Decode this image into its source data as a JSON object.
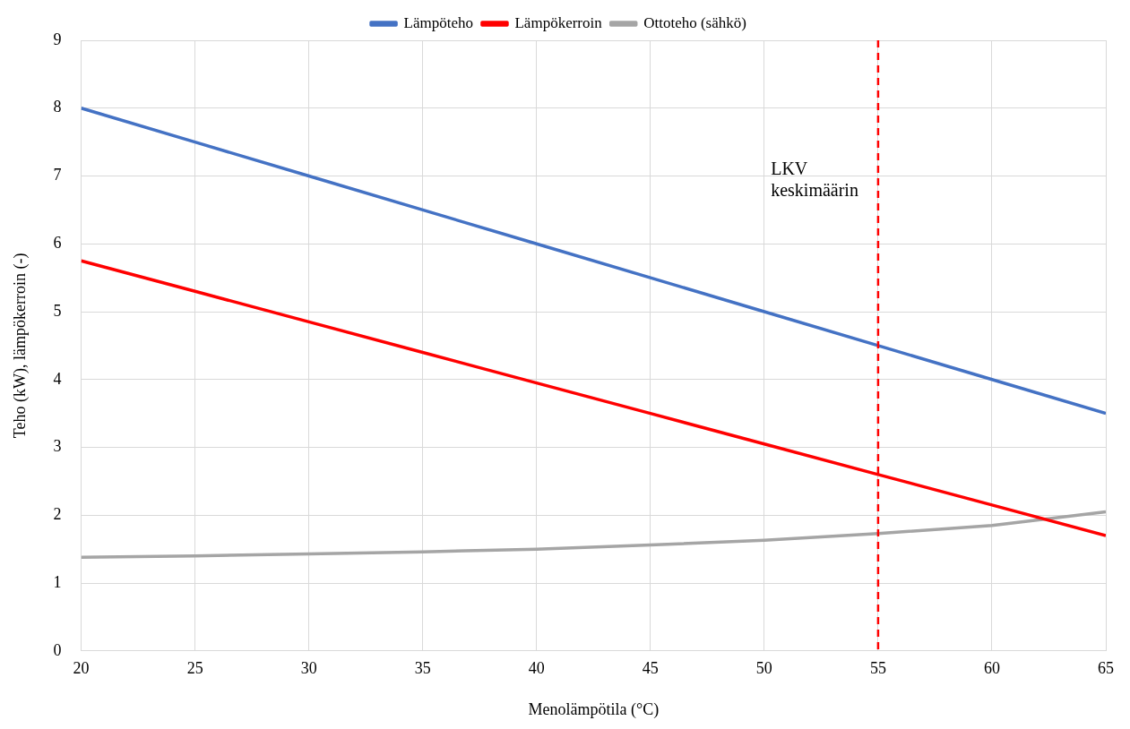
{
  "chart_data": {
    "type": "line",
    "xlabel": "Menolämpötila (°C)",
    "ylabel": "Teho (kW), lämpökerroin (-)",
    "x": [
      20,
      25,
      30,
      35,
      40,
      45,
      50,
      55,
      60,
      65
    ],
    "series": [
      {
        "name": "Lämpöteho",
        "color": "#4472c4",
        "values": [
          8,
          7.5,
          7,
          6.5,
          6,
          5.5,
          5,
          4.5,
          4,
          3.5
        ]
      },
      {
        "name": "Lämpökerroin",
        "color": "#ff0000",
        "values": [
          5.75,
          5.3,
          4.85,
          4.4,
          3.95,
          3.5,
          3.05,
          2.6,
          2.15,
          1.7
        ]
      },
      {
        "name": "Ottoteho (sähkö)",
        "color": "#a5a5a5",
        "values": [
          1.38,
          1.4,
          1.43,
          1.46,
          1.5,
          1.56,
          1.63,
          1.73,
          1.85,
          2.05
        ]
      }
    ],
    "xlim": [
      20,
      65
    ],
    "xticks": [
      20,
      25,
      30,
      35,
      40,
      45,
      50,
      55,
      60,
      65
    ],
    "ylim": [
      0,
      9
    ],
    "yticks": [
      0,
      1,
      2,
      3,
      4,
      5,
      6,
      7,
      8,
      9
    ],
    "ref_lines": [
      {
        "axis": "x",
        "value": 55,
        "color": "#ff0000",
        "line_style": "dashed",
        "label": "LKV keskimäärin"
      }
    ],
    "grid": true,
    "legend": "top",
    "marker": "none",
    "line_style": "solid"
  }
}
